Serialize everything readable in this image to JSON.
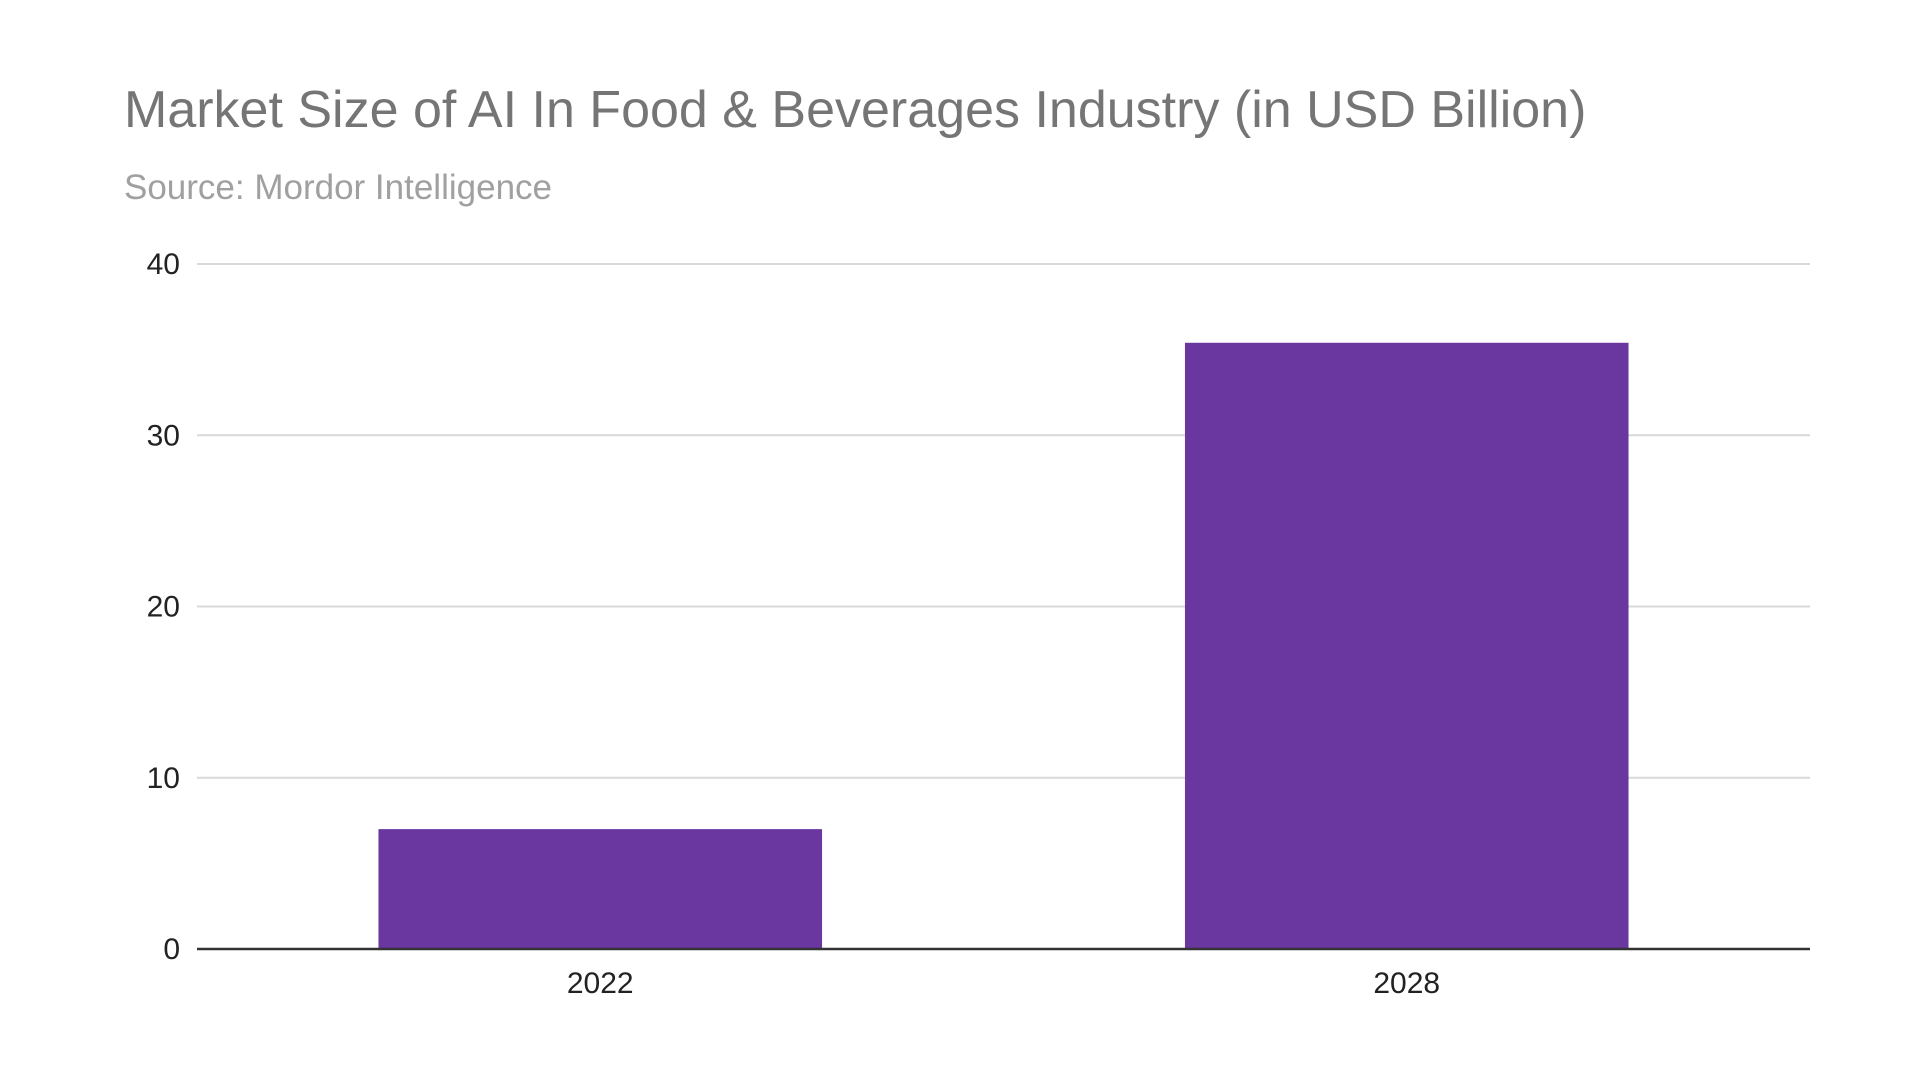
{
  "chart_data": {
    "type": "bar",
    "title": "Market Size of AI In Food & Beverages Industry (in USD Billion)",
    "subtitle": "Source: Mordor Intelligence",
    "categories": [
      "2022",
      "2028"
    ],
    "values": [
      7.0,
      35.4
    ],
    "ylim": [
      0,
      40
    ],
    "yticks": [
      0,
      10,
      20,
      30,
      40
    ],
    "xlabel": "",
    "ylabel": "",
    "grid": true,
    "legend": "none",
    "bar_color": "#6a37a0",
    "grid_color": "#d9d9d9",
    "axis_color": "#333333"
  }
}
